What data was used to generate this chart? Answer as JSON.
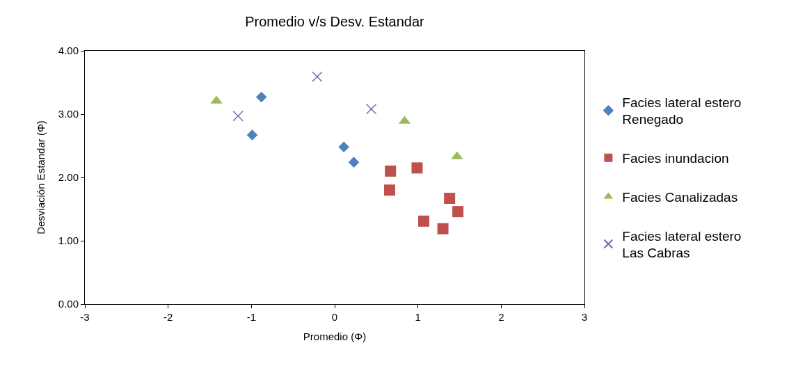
{
  "chart_data": {
    "type": "scatter",
    "title": "Promedio v/s Desv. Estandar",
    "xlabel": "Promedio (Φ)",
    "ylabel": "Desviación Estandar (Φ)",
    "xlim": [
      -3,
      3
    ],
    "xticks": [
      -3,
      -2,
      -1,
      0,
      1,
      2,
      3
    ],
    "ylim": [
      0,
      4
    ],
    "yticks": [
      {
        "value": 0,
        "label": "0.00"
      },
      {
        "value": 1,
        "label": "1.00"
      },
      {
        "value": 2,
        "label": "2.00"
      },
      {
        "value": 3,
        "label": "3.00"
      },
      {
        "value": 4,
        "label": "4.00"
      }
    ],
    "legend": "right",
    "series": [
      {
        "name": "Facies lateral estero\nRenegado",
        "color": "#4f81bd",
        "marker": "diamond",
        "x": [
          -0.99,
          -0.88,
          0.11,
          0.23
        ],
        "values": [
          2.67,
          3.27,
          2.48,
          2.24
        ]
      },
      {
        "name": "Facies inundacion",
        "color": "#c0504d",
        "marker": "square",
        "x": [
          0.67,
          0.66,
          0.99,
          1.07,
          1.38,
          1.48,
          1.3
        ],
        "values": [
          2.1,
          1.8,
          2.15,
          1.31,
          1.67,
          1.46,
          1.19
        ]
      },
      {
        "name": "Facies Canalizadas",
        "color": "#9bbb59",
        "marker": "triangle",
        "x": [
          -1.42,
          0.84,
          1.47
        ],
        "values": [
          3.21,
          2.89,
          2.33
        ]
      },
      {
        "name": "Facies lateral estero\nLas Cabras",
        "color": "#8064a2",
        "marker": "cross",
        "x": [
          -1.16,
          -0.21,
          0.44
        ],
        "values": [
          2.97,
          3.59,
          3.08
        ]
      }
    ]
  }
}
